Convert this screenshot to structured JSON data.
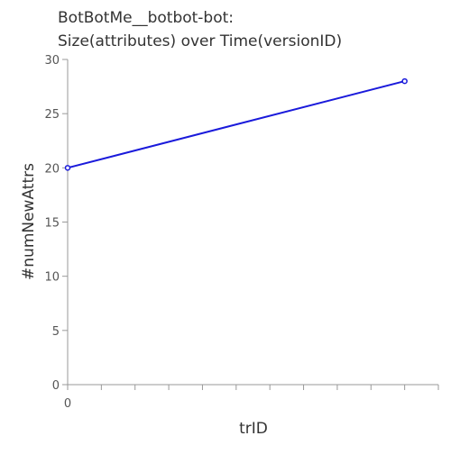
{
  "chart_data": {
    "type": "line",
    "title": [
      "BotBotMe__botbot-bot:",
      "Size(attributes) over Time(versionID)"
    ],
    "xlabel": "trID",
    "ylabel": "#numNewAttrs",
    "x": [
      0,
      10
    ],
    "x_tick_labels": [
      "0"
    ],
    "series": [
      {
        "values": [
          20,
          28
        ]
      }
    ],
    "xlim": [
      0,
      11
    ],
    "ylim": [
      0,
      30
    ],
    "y_ticks": [
      0,
      5,
      10,
      15,
      20,
      25,
      30
    ],
    "grid": false,
    "line_color": "#1a1adb",
    "axis_color": "#999999"
  }
}
